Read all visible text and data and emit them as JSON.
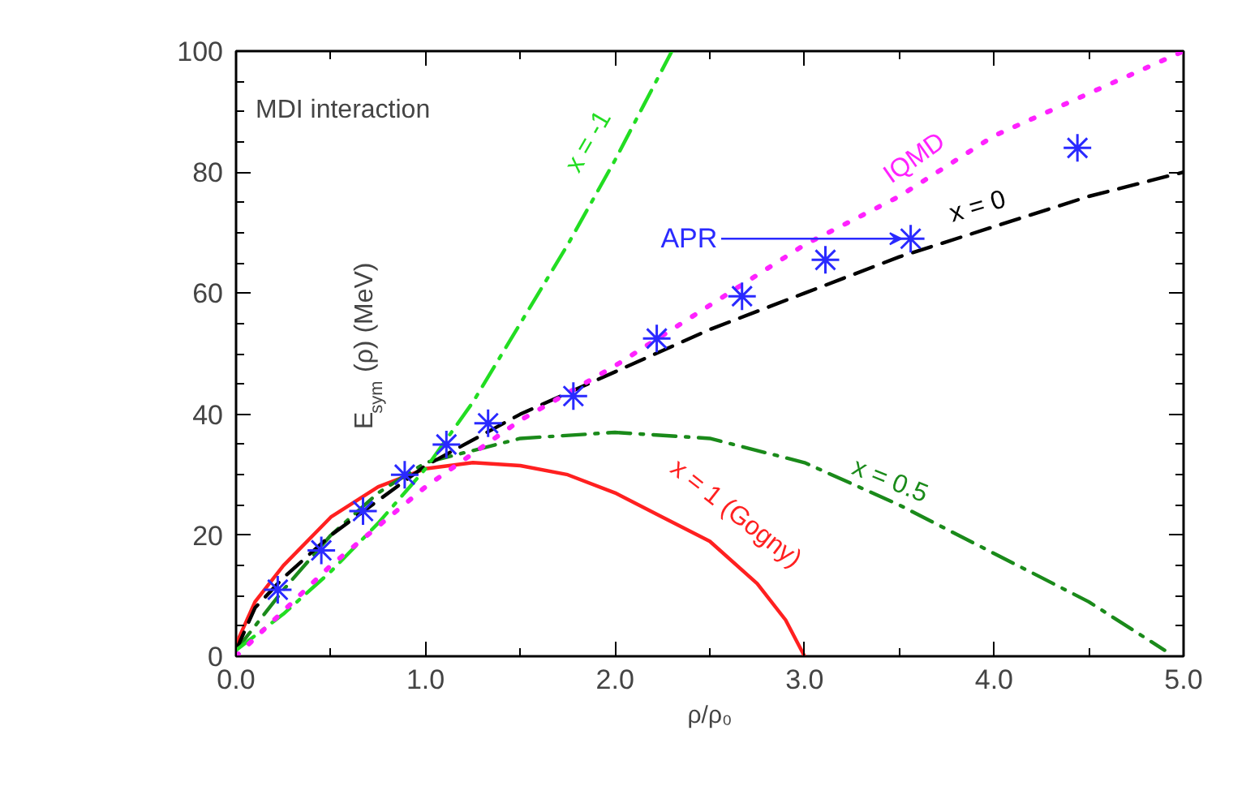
{
  "chart_data": {
    "type": "line",
    "xlabel": "ρ/ρ₀",
    "ylabel": "E$_{sym}$ (ρ) (MeV)",
    "xlim": [
      0,
      5
    ],
    "ylim": [
      0,
      100
    ],
    "xticks": [
      {
        "value": 0,
        "label": "0.0"
      },
      {
        "value": 1,
        "label": "1.0"
      },
      {
        "value": 2,
        "label": "2.0"
      },
      {
        "value": 3,
        "label": "3.0"
      },
      {
        "value": 4,
        "label": "4.0"
      },
      {
        "value": 5,
        "label": "5.0"
      }
    ],
    "yticks": [
      0,
      20,
      40,
      60,
      80,
      100
    ],
    "grid": false,
    "legend": false,
    "annotations": [
      "MDI interaction"
    ],
    "series": [
      {
        "name": "x = 1 (Gogny)",
        "color": "#ff2020",
        "line_style": "solid",
        "x": [
          0,
          0.1,
          0.25,
          0.5,
          0.75,
          1,
          1.25,
          1.5,
          1.75,
          2,
          2.25,
          2.5,
          2.75,
          2.9,
          3
        ],
        "values": [
          2,
          9,
          15,
          23,
          28,
          31,
          32,
          31.5,
          30,
          27,
          23,
          19,
          12,
          6,
          0
        ]
      },
      {
        "name": "x = 0.5",
        "color": "#1a8a1a",
        "line_style": "dashdot",
        "x": [
          0,
          0.25,
          0.5,
          0.75,
          1,
          1.5,
          2,
          2.5,
          3,
          3.5,
          4,
          4.5,
          4.9
        ],
        "values": [
          1,
          11,
          20,
          27,
          32,
          36,
          37,
          36,
          32,
          25,
          17,
          9,
          1
        ]
      },
      {
        "name": "x = 0",
        "color": "#000000",
        "line_style": "dashed",
        "x": [
          0,
          0.1,
          0.25,
          0.5,
          1,
          1.5,
          2,
          2.5,
          3,
          3.5,
          4,
          4.5,
          5
        ],
        "values": [
          1,
          8,
          13,
          20,
          31.5,
          40,
          47,
          54,
          60,
          66,
          71,
          76,
          80
        ]
      },
      {
        "name": "x = -1",
        "color": "#22dd22",
        "line_style": "dashdot",
        "x": [
          0,
          0.25,
          0.5,
          0.75,
          1,
          1.25,
          1.5,
          1.75,
          2,
          2.15,
          2.3
        ],
        "values": [
          1,
          7,
          14,
          22,
          31,
          42,
          55,
          68,
          82,
          91,
          100
        ]
      },
      {
        "name": "IQMD",
        "color": "#ff22ff",
        "line_style": "dotted",
        "x": [
          0,
          0.5,
          1,
          1.5,
          2,
          2.5,
          3,
          3.5,
          4,
          4.5,
          5
        ],
        "values": [
          0,
          15,
          28,
          39,
          48,
          58,
          68,
          76,
          86,
          93,
          100
        ]
      },
      {
        "name": "APR",
        "type": "scatter",
        "color": "#2a2aff",
        "marker": "cross",
        "x": [
          0.22,
          0.45,
          0.67,
          0.89,
          1.11,
          1.33,
          1.78,
          2.22,
          2.67,
          3.11,
          3.56,
          4.44
        ],
        "values": [
          11,
          17.5,
          24,
          30,
          35,
          38.5,
          43,
          52.5,
          59.5,
          65.5,
          69,
          84
        ]
      }
    ]
  }
}
